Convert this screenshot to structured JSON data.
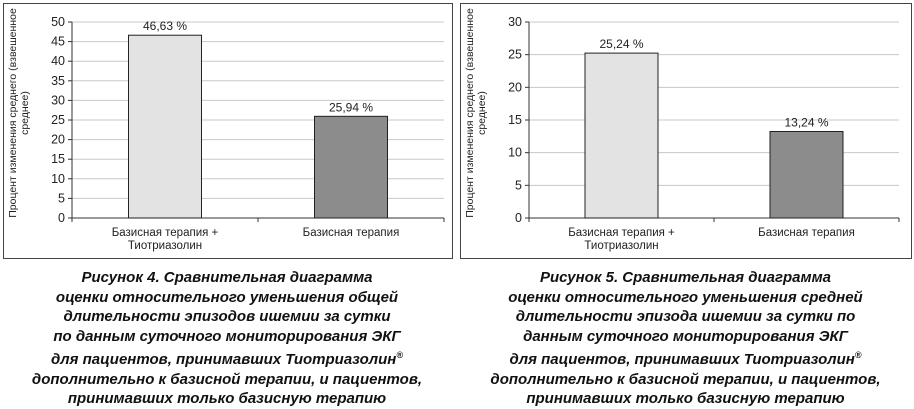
{
  "chart_data": [
    {
      "type": "bar",
      "ylabel": "Процент изменения среднего (взвешенное среднее)",
      "categories": [
        "Базисная терапия +\nТиотриазолин",
        "Базисная терапия"
      ],
      "values": [
        46.63,
        25.94
      ],
      "value_labels": [
        "46,63 %",
        "25,94 %"
      ],
      "ylim": [
        0,
        50
      ],
      "yticks": [
        0,
        5,
        10,
        15,
        20,
        25,
        30,
        35,
        40,
        45,
        50
      ],
      "grid": true,
      "colors": {
        "bars": [
          "#e3e3e3",
          "#8c8c8c"
        ],
        "grid": "#c8c8c8",
        "axis": "#333333"
      }
    },
    {
      "type": "bar",
      "ylabel": "Процент изменения среднего (взвешенное среднее)",
      "categories": [
        "Базисная терапия +\nТиотриазолин",
        "Базисная терапия"
      ],
      "values": [
        25.24,
        13.24
      ],
      "value_labels": [
        "25,24 %",
        "13,24 %"
      ],
      "ylim": [
        0,
        30
      ],
      "yticks": [
        0,
        5,
        10,
        15,
        20,
        25,
        30
      ],
      "grid": true,
      "colors": {
        "bars": [
          "#e3e3e3",
          "#8c8c8c"
        ],
        "grid": "#c8c8c8",
        "axis": "#333333"
      }
    }
  ],
  "captions": [
    {
      "text": "Рисунок 4. Сравнительная диаграмма\nоценки относительного уменьшения общей\nдлительности эпизодов ишемии за сутки\nпо данным суточного мониторирования ЭКГ\nдля пациентов, принимавших Тиотриазолин",
      "mark": "®",
      "tail": "\nдополнительно к базисной терапии, и пациентов,\nпринимавших только базисную терапию"
    },
    {
      "text": "Рисунок 5. Сравнительная диаграмма\nоценки относительного уменьшения средней\nдлительности эпизода ишемии за сутки по\nданным суточного мониторирования ЭКГ\nдля пациентов, принимавших Тиотриазолин",
      "mark": "®",
      "tail": "\nдополнительно к базисной терапии, и пациентов,\nпринимавших только базисную терапию"
    }
  ]
}
